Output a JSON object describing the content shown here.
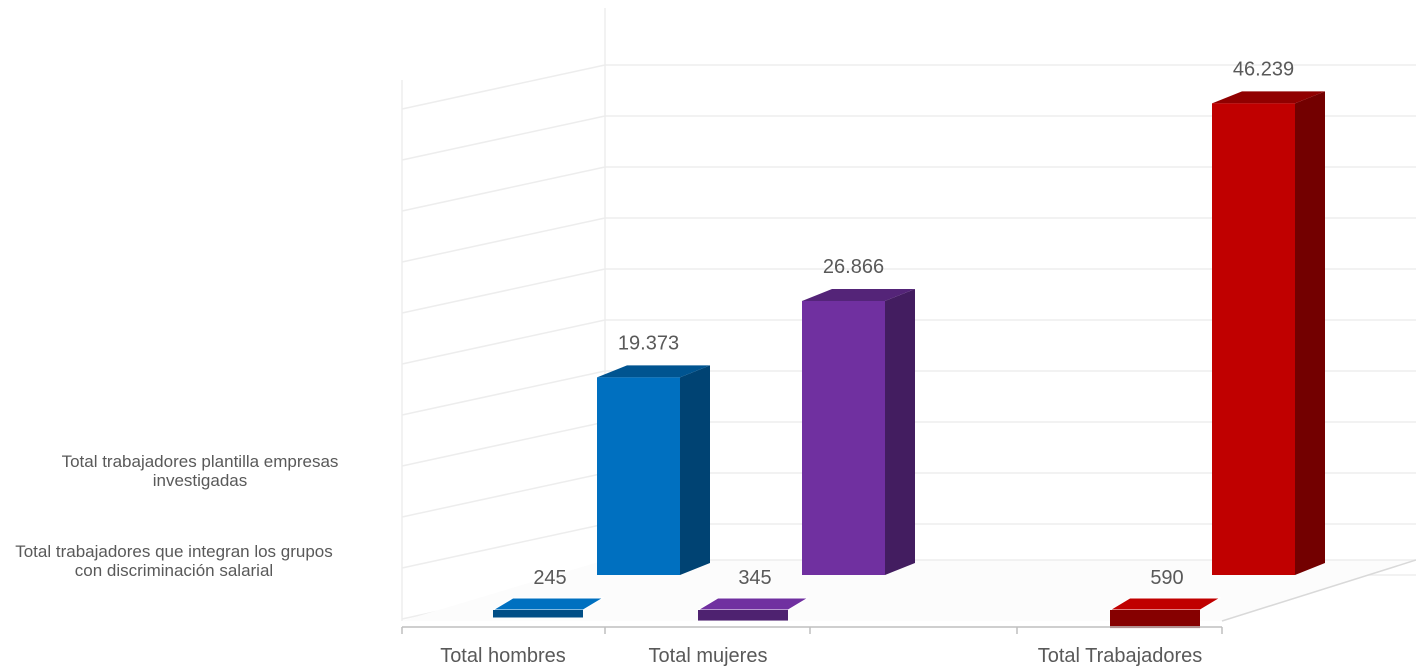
{
  "chart_data": {
    "type": "bar",
    "title": "",
    "xlabel": "",
    "ylabel": "",
    "categories": [
      "Total hombres",
      "Total mujeres",
      "Total Trabajadores"
    ],
    "series": [
      {
        "name": "Total trabajadores que integran los grupos con discriminación salarial",
        "values": [
          245,
          345,
          590
        ],
        "labels": [
          "245",
          "345",
          "590"
        ]
      },
      {
        "name": "Total trabajadores plantilla empresas investigadas",
        "values": [
          19373,
          26866,
          46239
        ],
        "labels": [
          "19.373",
          "26.866",
          "46.239"
        ]
      }
    ],
    "ylim": [
      0,
      50000
    ],
    "grid": true,
    "legend": "left",
    "style": "3d-clustered-column"
  },
  "legend": {
    "front_series_label": "Total trabajadores que integran los grupos con discriminación salarial",
    "back_series_label": "Total trabajadores plantilla empresas investigadas"
  },
  "colors": {
    "hombres": "#0070C0",
    "mujeres": "#7030A0",
    "trabajadores": "#C00000",
    "grid": "#EDEDED",
    "text": "#595959"
  }
}
